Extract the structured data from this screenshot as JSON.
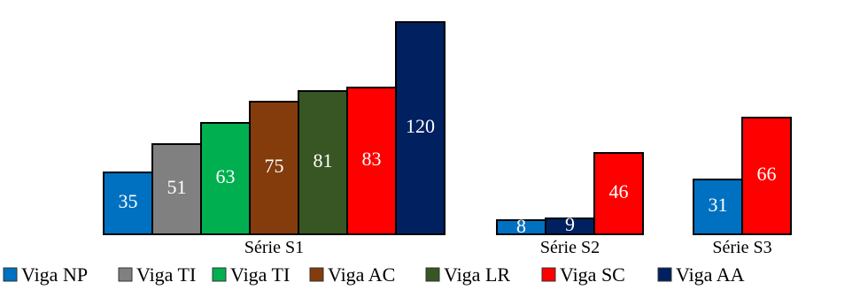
{
  "chart_data": {
    "type": "bar",
    "title": "",
    "xlabel": "",
    "ylabel": "",
    "ylim": [
      0,
      125
    ],
    "grid": false,
    "legend_position": "bottom",
    "legend": [
      {
        "name": "Viga NP",
        "color": "#0070C0"
      },
      {
        "name": "Viga TI",
        "color": "#808080"
      },
      {
        "name": "Viga TI",
        "color": "#00B050"
      },
      {
        "name": "Viga AC",
        "color": "#843C0C"
      },
      {
        "name": "Viga LR",
        "color": "#375623"
      },
      {
        "name": "Viga SC",
        "color": "#FF0000"
      },
      {
        "name": "Viga AA",
        "color": "#002060"
      }
    ],
    "groups": [
      {
        "label": "Série S1",
        "bars": [
          {
            "legend_index": 0,
            "value": 35,
            "label": "35"
          },
          {
            "legend_index": 1,
            "value": 51,
            "label": "51"
          },
          {
            "legend_index": 2,
            "value": 63,
            "label": "63"
          },
          {
            "legend_index": 3,
            "value": 75,
            "label": "75"
          },
          {
            "legend_index": 4,
            "value": 81,
            "label": "81"
          },
          {
            "legend_index": 5,
            "value": 83,
            "label": "83"
          },
          {
            "legend_index": 6,
            "value": 120,
            "label": "120"
          }
        ]
      },
      {
        "label": "Série S2",
        "bars": [
          {
            "legend_index": 0,
            "value": 8,
            "label": "8"
          },
          {
            "legend_index": 6,
            "value": 9,
            "label": "9"
          },
          {
            "legend_index": 5,
            "value": 46,
            "label": "46"
          }
        ]
      },
      {
        "label": "Série S3",
        "bars": [
          {
            "legend_index": 0,
            "value": 31,
            "label": "31"
          },
          {
            "legend_index": 5,
            "value": 66,
            "label": "66"
          }
        ]
      }
    ]
  }
}
